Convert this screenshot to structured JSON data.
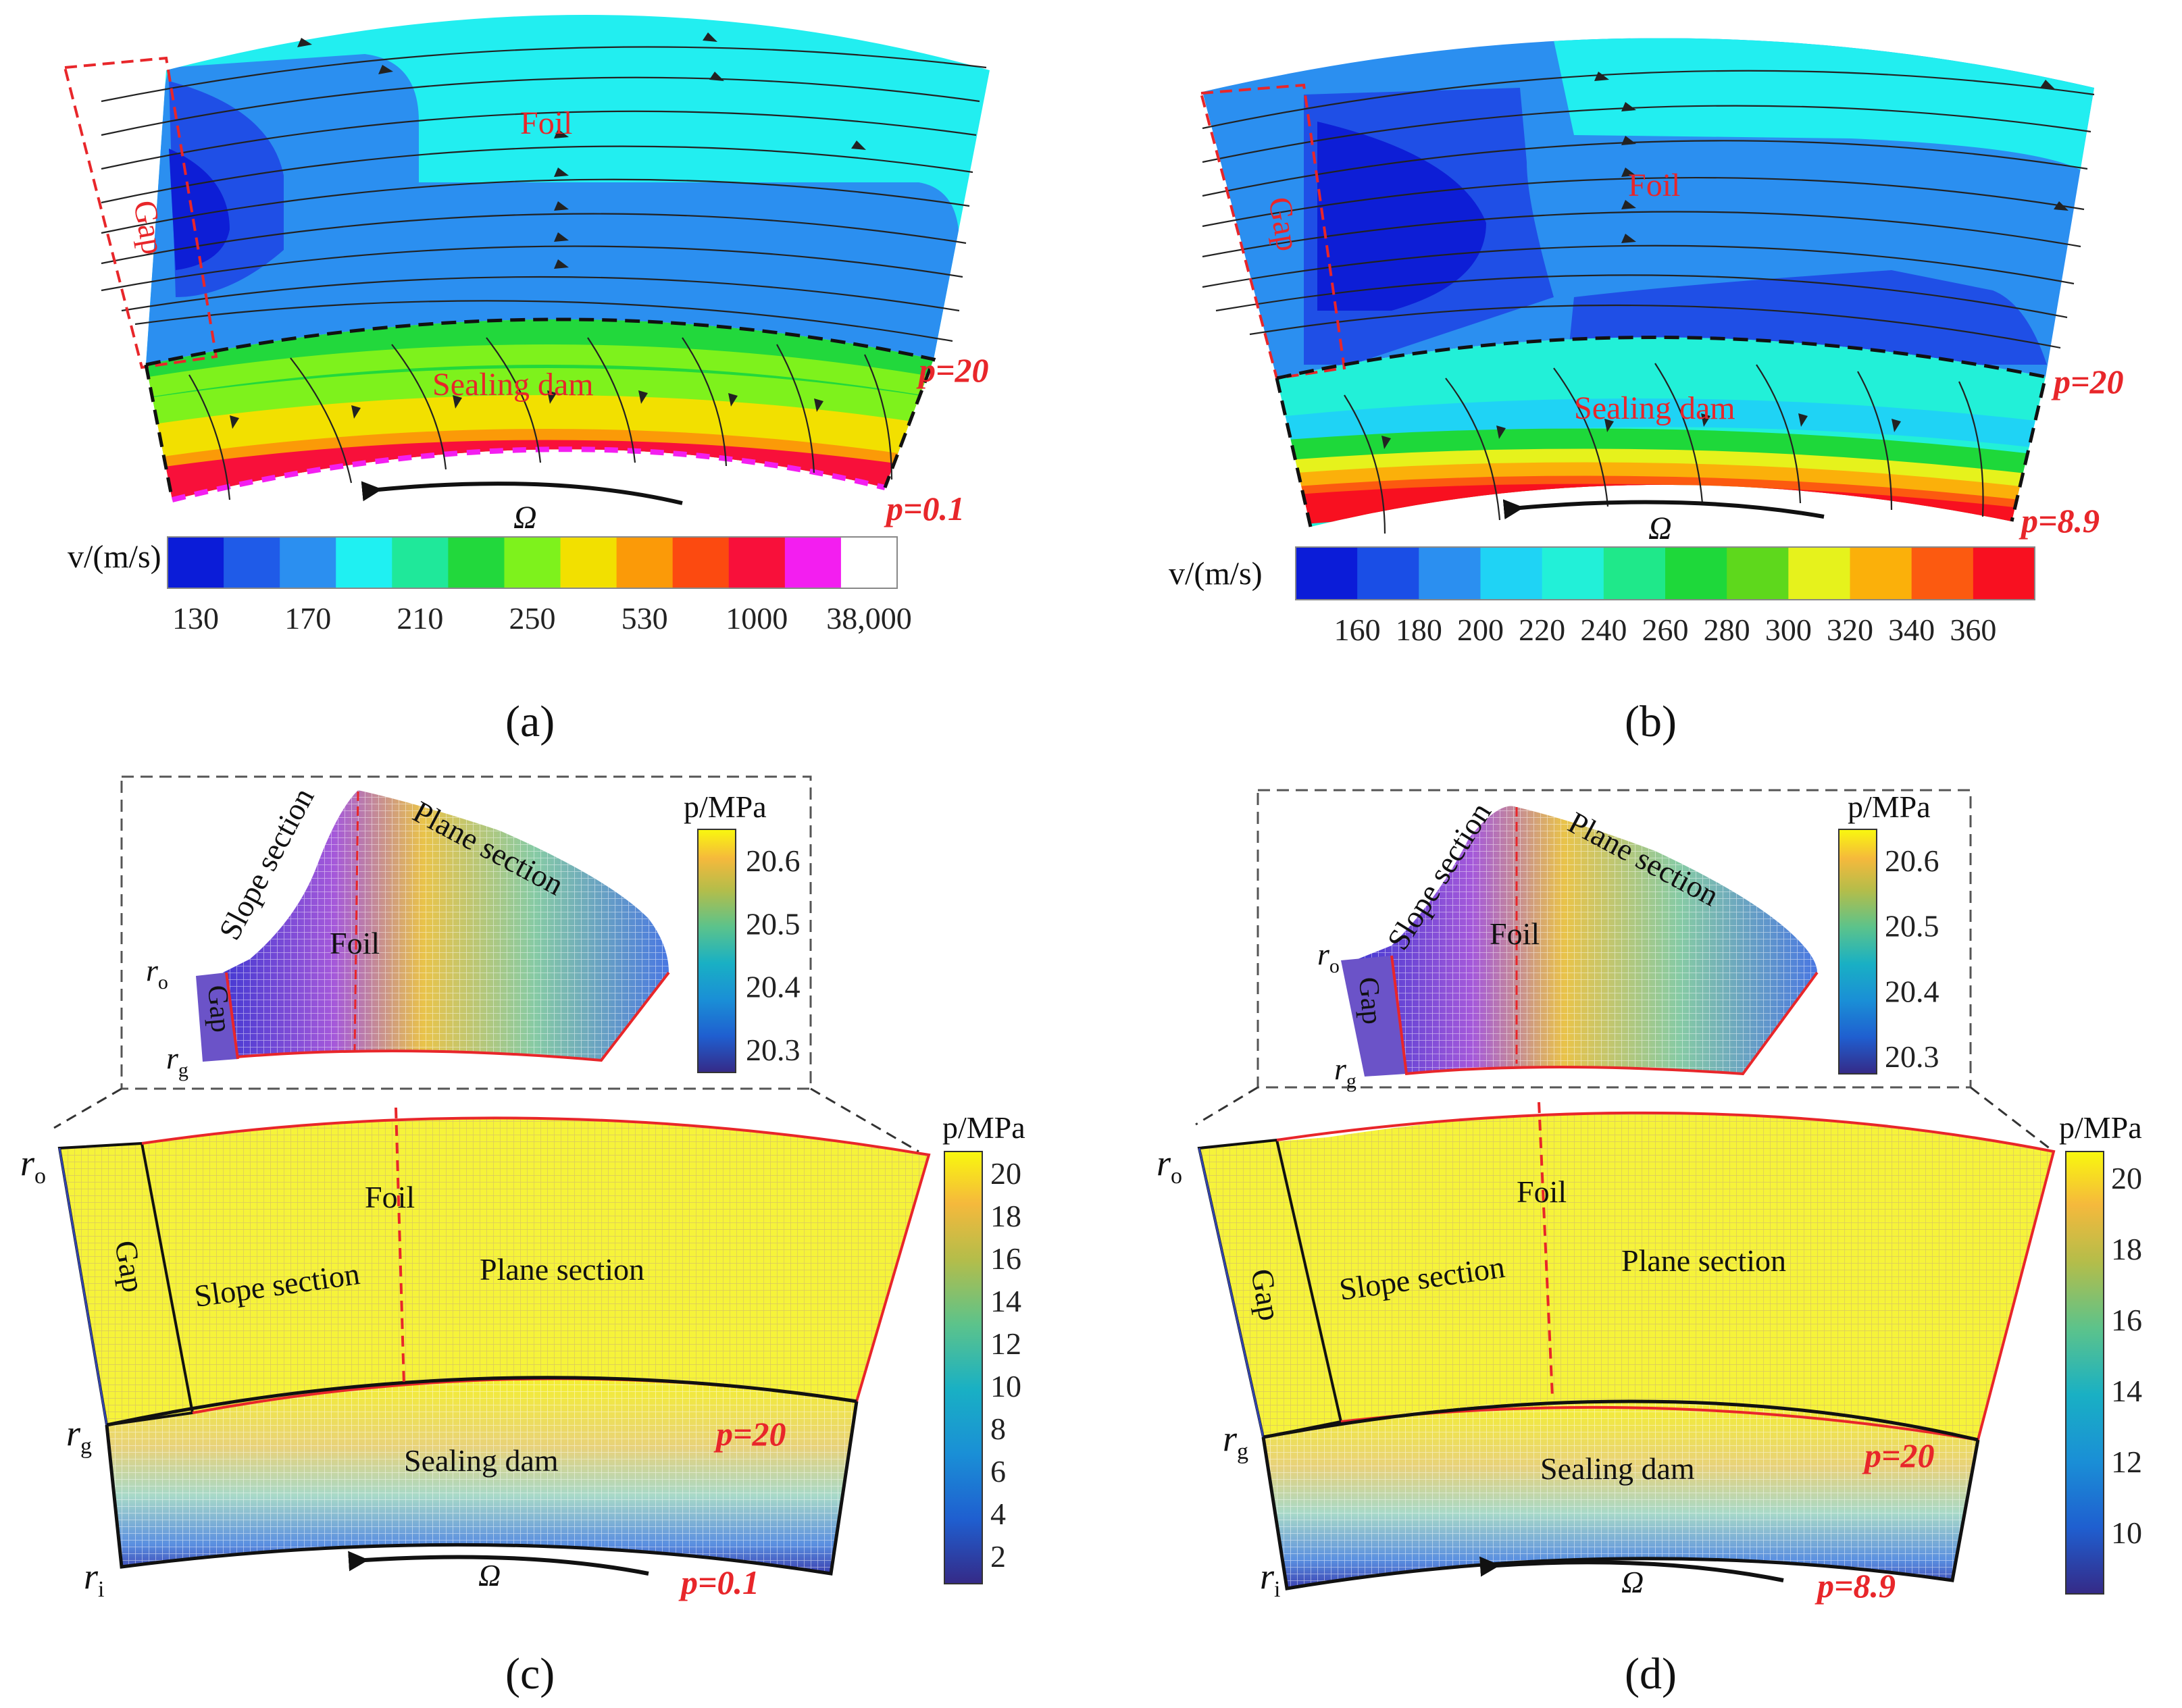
{
  "panels": [
    {
      "id": "a",
      "caption": "(a)",
      "labels": {
        "gap": "Gap",
        "foil": "Foil",
        "dam": "Sealing dam",
        "p_high": "p=20",
        "p_low": "p=0.1",
        "omega": "Ω"
      },
      "colorbar": {
        "title": "v/(m/s)",
        "ticks": [
          "130",
          "170",
          "210",
          "250",
          "530",
          "1000",
          "38,000"
        ],
        "colors": [
          "#0b1cd8",
          "#1f5be8",
          "#2b8ff0",
          "#1ff0f2",
          "#1fe89a",
          "#22d83c",
          "#7ef21c",
          "#f2e000",
          "#fb9a08",
          "#fc4a10",
          "#f8103a",
          "#f31ef0",
          "#ffffff"
        ]
      }
    },
    {
      "id": "b",
      "caption": "(b)",
      "labels": {
        "gap": "Gap",
        "foil": "Foil",
        "dam": "Sealing dam",
        "p_high": "p=20",
        "p_low": "p=8.9",
        "omega": "Ω"
      },
      "colorbar": {
        "title": "v/(m/s)",
        "ticks": [
          "160",
          "180",
          "200",
          "220",
          "240",
          "260",
          "280",
          "300",
          "320",
          "340",
          "360"
        ],
        "colors": [
          "#0b1cd8",
          "#1a4ee6",
          "#2b8ff0",
          "#1fd3f5",
          "#22f0d8",
          "#1fe88a",
          "#1ed83a",
          "#5ed81c",
          "#e6f21c",
          "#fbb00a",
          "#fc5a10",
          "#f81020"
        ]
      }
    },
    {
      "id": "c",
      "caption": "(c)",
      "inset": {
        "slope": "Slope section",
        "plane": "Plane section",
        "foil": "Foil",
        "gap": "Gap",
        "r_o": "r",
        "r_o_sub": "o",
        "r_g": "r",
        "r_g_sub": "g",
        "cb_title": "p/MPa",
        "cb_ticks": [
          "20.6",
          "20.5",
          "20.4",
          "20.3"
        ]
      },
      "labels": {
        "gap": "Gap",
        "foil": "Foil",
        "slope": "Slope section",
        "plane": "Plane section",
        "dam": "Sealing dam",
        "p_high": "p=20",
        "p_low": "p=0.1",
        "omega": "Ω",
        "r_o": "r",
        "r_o_sub": "o",
        "r_g": "r",
        "r_g_sub": "g",
        "r_i": "r",
        "r_i_sub": "i"
      },
      "colorbar": {
        "title": "p/MPa",
        "ticks": [
          "20",
          "18",
          "16",
          "14",
          "12",
          "10",
          "8",
          "6",
          "4",
          "2"
        ]
      }
    },
    {
      "id": "d",
      "caption": "(d)",
      "inset": {
        "slope": "Slope section",
        "plane": "Plane section",
        "foil": "Foil",
        "gap": "Gap",
        "r_o": "r",
        "r_o_sub": "o",
        "r_g": "r",
        "r_g_sub": "g",
        "cb_title": "p/MPa",
        "cb_ticks": [
          "20.6",
          "20.5",
          "20.4",
          "20.3"
        ]
      },
      "labels": {
        "gap": "Gap",
        "foil": "Foil",
        "slope": "Slope section",
        "plane": "Plane section",
        "dam": "Sealing dam",
        "p_high": "p=20",
        "p_low": "p=8.9",
        "omega": "Ω",
        "r_o": "r",
        "r_o_sub": "o",
        "r_g": "r",
        "r_g_sub": "g",
        "r_i": "r",
        "r_i_sub": "i"
      },
      "colorbar": {
        "title": "p/MPa",
        "ticks": [
          "20",
          "18",
          "16",
          "14",
          "12",
          "10"
        ]
      }
    }
  ]
}
